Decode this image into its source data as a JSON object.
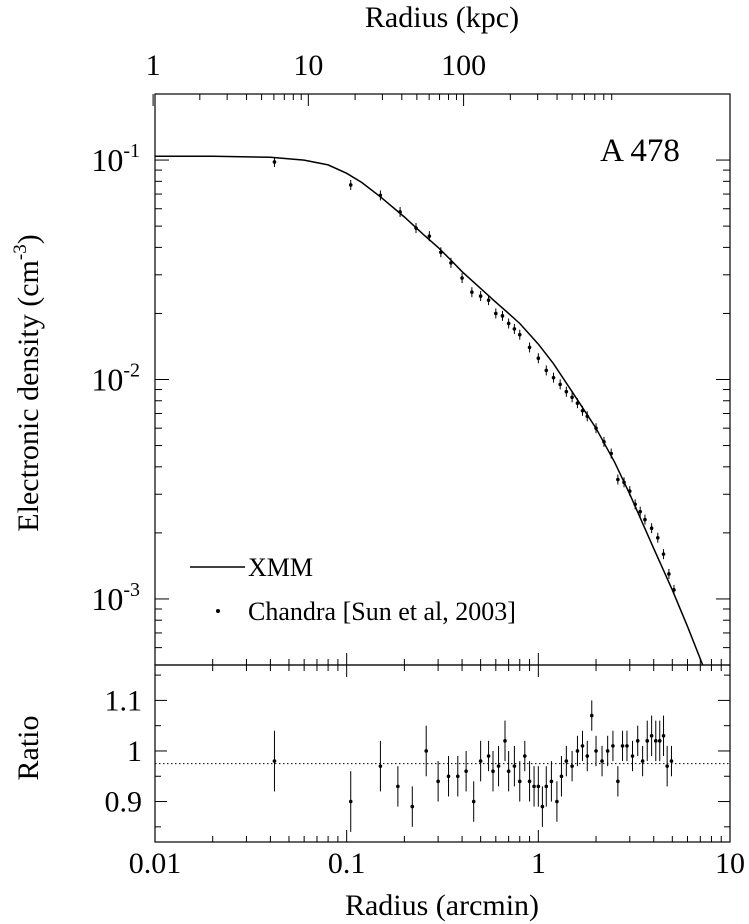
{
  "chart_data": [
    {
      "type": "line",
      "panel": "density",
      "annotation": "A 478",
      "ylabel": {
        "base": "Electronic density (cm",
        "sup": "-3",
        "close": ")"
      },
      "x_top_label": "Radius (kpc)",
      "x_top_ticks": [
        {
          "label": "1",
          "kpc": 1
        },
        {
          "label": "10",
          "kpc": 10
        },
        {
          "label": "100",
          "kpc": 100
        }
      ],
      "xscale": "log",
      "yscale": "log",
      "xlim": [
        0.01,
        10
      ],
      "ylim": [
        0.0005,
        0.2
      ],
      "y_ticks": [
        {
          "base": "10",
          "exp": "-1",
          "value": 0.1
        },
        {
          "base": "10",
          "exp": "-2",
          "value": 0.01
        },
        {
          "base": "10",
          "exp": "-3",
          "value": 0.001
        }
      ],
      "legend": {
        "position": "bottom-left",
        "entries": [
          {
            "label": "XMM",
            "style": "line"
          },
          {
            "label": "Chandra [Sun et al, 2003]",
            "style": "point"
          }
        ]
      },
      "series": [
        {
          "name": "XMM",
          "style": "line",
          "x": [
            0.01,
            0.02,
            0.04,
            0.06,
            0.08,
            0.1,
            0.12,
            0.15,
            0.2,
            0.25,
            0.3,
            0.35,
            0.4,
            0.5,
            0.6,
            0.7,
            0.8,
            1.0,
            1.2,
            1.5,
            2.0,
            2.5,
            3.0,
            4.0,
            5.0,
            6.0,
            7.2
          ],
          "y": [
            0.104,
            0.104,
            0.103,
            0.1,
            0.095,
            0.087,
            0.079,
            0.068,
            0.055,
            0.046,
            0.04,
            0.035,
            0.031,
            0.026,
            0.0225,
            0.02,
            0.018,
            0.0145,
            0.0118,
            0.0088,
            0.006,
            0.0042,
            0.003,
            0.0017,
            0.0011,
            0.00075,
            0.0005
          ]
        },
        {
          "name": "Chandra [Sun et al, 2003]",
          "style": "point",
          "points": [
            [
              0.042,
              0.098
            ],
            [
              0.105,
              0.077
            ],
            [
              0.15,
              0.069
            ],
            [
              0.19,
              0.058
            ],
            [
              0.23,
              0.049
            ],
            [
              0.27,
              0.045
            ],
            [
              0.31,
              0.038
            ],
            [
              0.35,
              0.034
            ],
            [
              0.4,
              0.029
            ],
            [
              0.45,
              0.025
            ],
            [
              0.5,
              0.024
            ],
            [
              0.55,
              0.023
            ],
            [
              0.6,
              0.02
            ],
            [
              0.65,
              0.0195
            ],
            [
              0.7,
              0.018
            ],
            [
              0.75,
              0.017
            ],
            [
              0.8,
              0.016
            ],
            [
              0.9,
              0.014
            ],
            [
              1.0,
              0.0125
            ],
            [
              1.1,
              0.011
            ],
            [
              1.2,
              0.0102
            ],
            [
              1.3,
              0.0095
            ],
            [
              1.4,
              0.0088
            ],
            [
              1.5,
              0.0083
            ],
            [
              1.6,
              0.0078
            ],
            [
              1.7,
              0.0072
            ],
            [
              1.8,
              0.0068
            ],
            [
              2.0,
              0.006
            ],
            [
              2.2,
              0.0052
            ],
            [
              2.4,
              0.0046
            ],
            [
              2.6,
              0.0035
            ],
            [
              2.8,
              0.0034
            ],
            [
              3.0,
              0.0031
            ],
            [
              3.2,
              0.0027
            ],
            [
              3.4,
              0.0025
            ],
            [
              3.6,
              0.0023
            ],
            [
              3.9,
              0.0021
            ],
            [
              4.2,
              0.0019
            ],
            [
              4.5,
              0.0016
            ],
            [
              4.8,
              0.0013
            ],
            [
              5.1,
              0.0011
            ]
          ]
        }
      ]
    },
    {
      "type": "scatter",
      "panel": "ratio",
      "ylabel": "Ratio",
      "xlabel": "Radius (arcmin)",
      "xscale": "log",
      "xlim": [
        0.01,
        10
      ],
      "ylim": [
        0.82,
        1.17
      ],
      "x_ticks": [
        {
          "label": "0.01",
          "value": 0.01
        },
        {
          "label": "0.1",
          "value": 0.1
        },
        {
          "label": "1",
          "value": 1
        },
        {
          "label": "10",
          "value": 10
        }
      ],
      "y_ticks": [
        {
          "label": "1.1",
          "value": 1.1
        },
        {
          "label": "1",
          "value": 1.0
        },
        {
          "label": "0.9",
          "value": 0.9
        }
      ],
      "reference_line": {
        "y": 0.975,
        "style": "dotted"
      },
      "points": [
        [
          0.042,
          0.98,
          0.06
        ],
        [
          0.105,
          0.9,
          0.06
        ],
        [
          0.15,
          0.97,
          0.05
        ],
        [
          0.185,
          0.93,
          0.04
        ],
        [
          0.22,
          0.89,
          0.04
        ],
        [
          0.26,
          1.0,
          0.05
        ],
        [
          0.3,
          0.94,
          0.04
        ],
        [
          0.34,
          0.95,
          0.04
        ],
        [
          0.38,
          0.95,
          0.04
        ],
        [
          0.42,
          0.96,
          0.04
        ],
        [
          0.46,
          0.9,
          0.04
        ],
        [
          0.5,
          0.98,
          0.04
        ],
        [
          0.55,
          0.99,
          0.03
        ],
        [
          0.58,
          0.96,
          0.04
        ],
        [
          0.62,
          0.97,
          0.04
        ],
        [
          0.67,
          1.02,
          0.04
        ],
        [
          0.7,
          0.96,
          0.04
        ],
        [
          0.75,
          0.97,
          0.04
        ],
        [
          0.8,
          0.94,
          0.04
        ],
        [
          0.85,
          0.99,
          0.03
        ],
        [
          0.9,
          0.94,
          0.04
        ],
        [
          0.95,
          0.93,
          0.04
        ],
        [
          1.0,
          0.93,
          0.04
        ],
        [
          1.05,
          0.89,
          0.04
        ],
        [
          1.1,
          0.93,
          0.04
        ],
        [
          1.17,
          0.94,
          0.04
        ],
        [
          1.25,
          0.9,
          0.04
        ],
        [
          1.32,
          0.95,
          0.04
        ],
        [
          1.4,
          0.98,
          0.03
        ],
        [
          1.5,
          0.97,
          0.03
        ],
        [
          1.6,
          1.0,
          0.03
        ],
        [
          1.7,
          1.01,
          0.03
        ],
        [
          1.8,
          0.99,
          0.03
        ],
        [
          1.9,
          1.07,
          0.03
        ],
        [
          2.0,
          1.0,
          0.03
        ],
        [
          2.15,
          0.98,
          0.03
        ],
        [
          2.3,
          1.0,
          0.03
        ],
        [
          2.45,
          1.01,
          0.03
        ],
        [
          2.6,
          0.94,
          0.03
        ],
        [
          2.75,
          1.01,
          0.03
        ],
        [
          2.9,
          1.01,
          0.03
        ],
        [
          3.1,
          0.99,
          0.03
        ],
        [
          3.3,
          1.02,
          0.03
        ],
        [
          3.5,
          0.98,
          0.03
        ],
        [
          3.7,
          1.02,
          0.04
        ],
        [
          3.9,
          1.03,
          0.04
        ],
        [
          4.1,
          1.02,
          0.04
        ],
        [
          4.3,
          1.02,
          0.04
        ],
        [
          4.5,
          1.03,
          0.04
        ],
        [
          4.7,
          0.97,
          0.04
        ],
        [
          4.95,
          0.98,
          0.03
        ]
      ]
    }
  ]
}
